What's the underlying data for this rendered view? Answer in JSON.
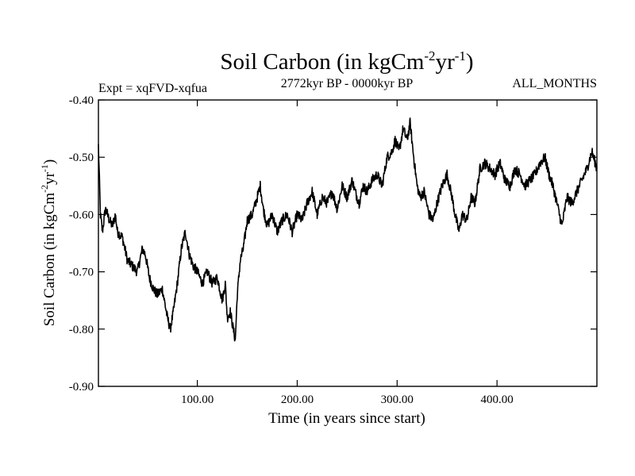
{
  "chart_data": {
    "type": "line",
    "title": {
      "main": "Soil Carbon (in kgCm",
      "exp1": "-2",
      "mid": "yr",
      "exp2": "-1",
      "end": ")"
    },
    "subtitle_left": "Expt = xqFVD-xqfua",
    "subtitle_center": "2772kyr BP - 0000kyr BP",
    "subtitle_right": "ALL_MONTHS",
    "xlabel": "Time (in years since start)",
    "ylabel": {
      "main": "Soil Carbon (in kgCm",
      "exp1": "-2",
      "mid": "yr",
      "exp2": "-1",
      "end": ")"
    },
    "xlim": [
      1,
      500
    ],
    "ylim": [
      -0.9,
      -0.4
    ],
    "x_ticks": [
      100,
      200,
      300,
      400
    ],
    "x_tick_labels": [
      "100.00",
      "200.00",
      "300.00",
      "400.00"
    ],
    "y_ticks": [
      -0.4,
      -0.5,
      -0.6,
      -0.7,
      -0.8,
      -0.9
    ],
    "y_tick_labels": [
      "-0.40",
      "-0.50",
      "-0.60",
      "-0.70",
      "-0.80",
      "-0.90"
    ],
    "grid": false,
    "series": [
      {
        "name": "Soil Carbon",
        "color": "#000000",
        "x": [
          1,
          2,
          3,
          5,
          8,
          12,
          15,
          18,
          20,
          25,
          30,
          35,
          40,
          45,
          48,
          52,
          56,
          60,
          65,
          70,
          73,
          76,
          80,
          84,
          88,
          92,
          96,
          100,
          105,
          110,
          115,
          120,
          125,
          128,
          130,
          133,
          136,
          138,
          140,
          143,
          146,
          150,
          155,
          160,
          163,
          166,
          170,
          175,
          180,
          185,
          190,
          195,
          200,
          205,
          210,
          215,
          220,
          225,
          230,
          235,
          240,
          245,
          250,
          255,
          258,
          262,
          266,
          270,
          275,
          280,
          285,
          290,
          295,
          298,
          302,
          306,
          310,
          313,
          316,
          320,
          323,
          327,
          332,
          336,
          340,
          345,
          350,
          355,
          358,
          362,
          365,
          370,
          374,
          378,
          383,
          388,
          393,
          398,
          403,
          408,
          413,
          418,
          423,
          428,
          433,
          438,
          443,
          448,
          452,
          456,
          460,
          465,
          470,
          475,
          480,
          485,
          490,
          495,
          500
        ],
        "y": [
          -0.48,
          -0.54,
          -0.6,
          -0.63,
          -0.59,
          -0.61,
          -0.62,
          -0.6,
          -0.63,
          -0.64,
          -0.68,
          -0.69,
          -0.7,
          -0.66,
          -0.67,
          -0.71,
          -0.73,
          -0.74,
          -0.73,
          -0.78,
          -0.8,
          -0.77,
          -0.72,
          -0.66,
          -0.63,
          -0.67,
          -0.69,
          -0.7,
          -0.72,
          -0.7,
          -0.72,
          -0.71,
          -0.75,
          -0.72,
          -0.78,
          -0.77,
          -0.8,
          -0.82,
          -0.74,
          -0.68,
          -0.66,
          -0.61,
          -0.6,
          -0.57,
          -0.55,
          -0.59,
          -0.62,
          -0.6,
          -0.63,
          -0.61,
          -0.6,
          -0.63,
          -0.6,
          -0.61,
          -0.58,
          -0.56,
          -0.6,
          -0.57,
          -0.58,
          -0.56,
          -0.59,
          -0.55,
          -0.57,
          -0.54,
          -0.56,
          -0.58,
          -0.55,
          -0.56,
          -0.54,
          -0.53,
          -0.55,
          -0.5,
          -0.49,
          -0.47,
          -0.49,
          -0.45,
          -0.47,
          -0.44,
          -0.49,
          -0.55,
          -0.57,
          -0.56,
          -0.6,
          -0.61,
          -0.58,
          -0.55,
          -0.53,
          -0.57,
          -0.6,
          -0.63,
          -0.6,
          -0.61,
          -0.57,
          -0.58,
          -0.52,
          -0.51,
          -0.52,
          -0.53,
          -0.51,
          -0.54,
          -0.55,
          -0.52,
          -0.53,
          -0.55,
          -0.54,
          -0.53,
          -0.51,
          -0.5,
          -0.53,
          -0.55,
          -0.58,
          -0.62,
          -0.57,
          -0.58,
          -0.56,
          -0.54,
          -0.52,
          -0.49,
          -0.52
        ]
      }
    ]
  }
}
